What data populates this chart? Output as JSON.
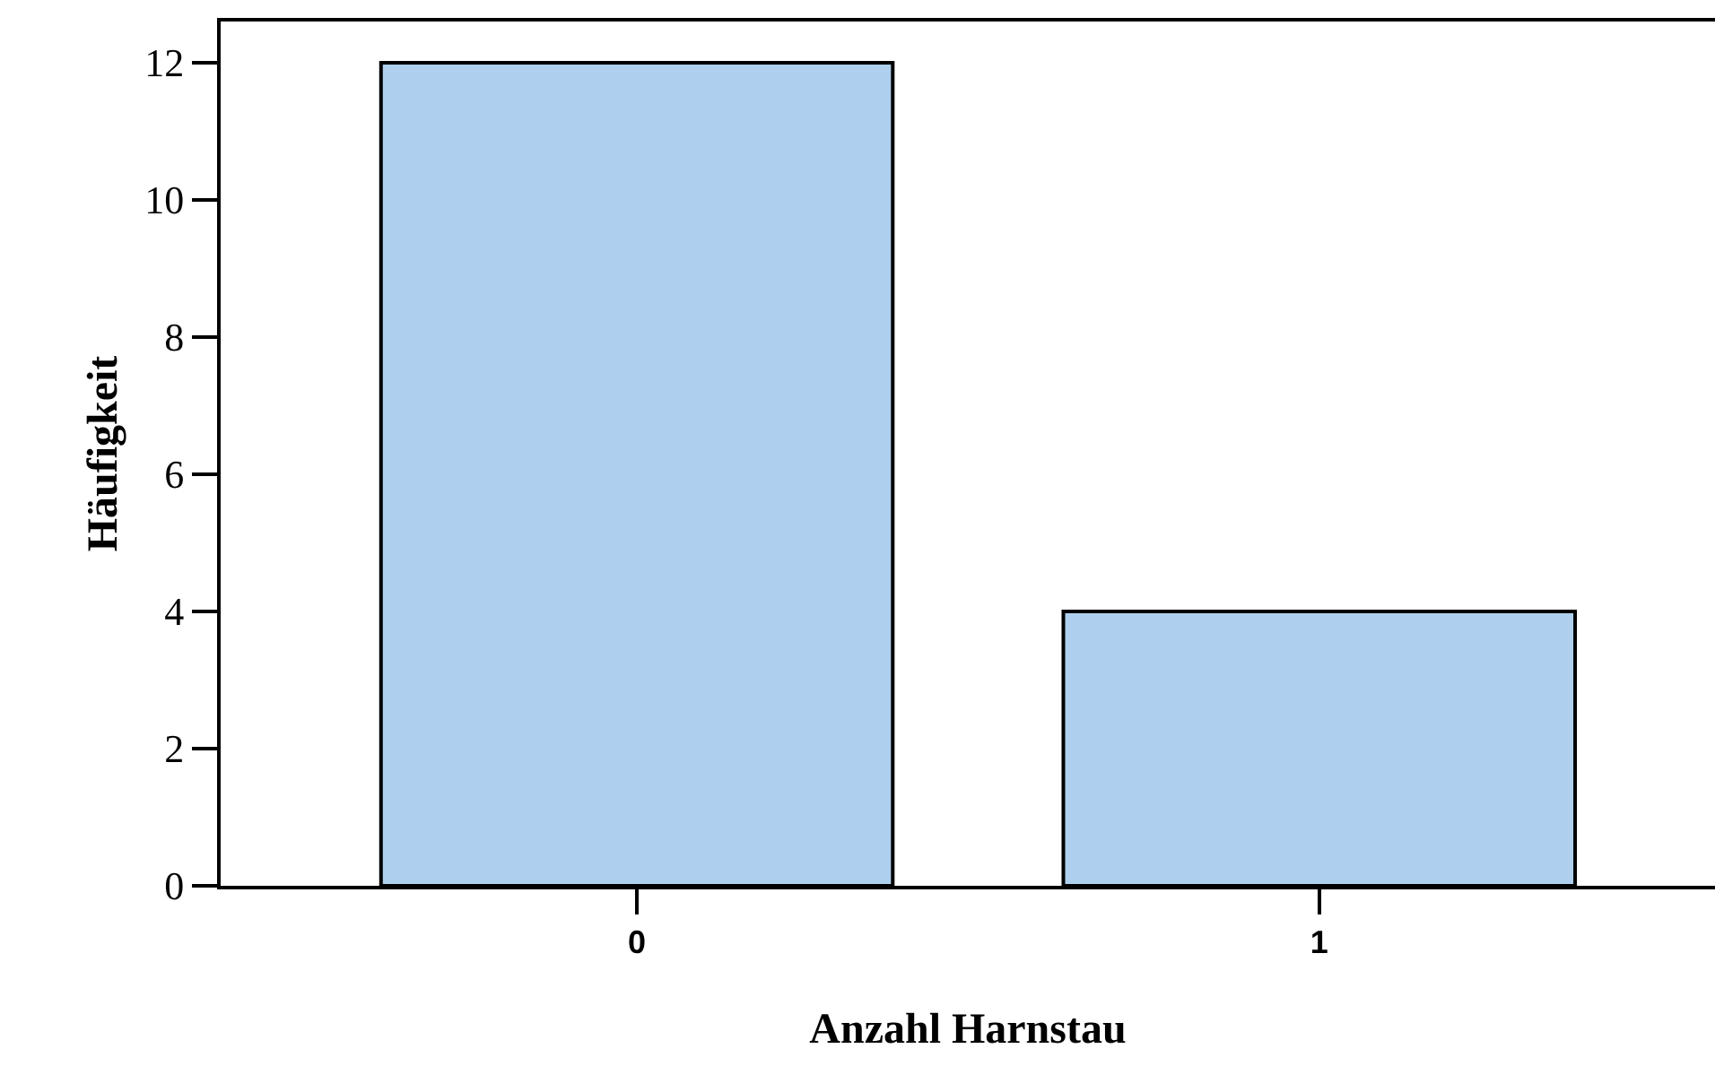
{
  "chart_data": {
    "type": "bar",
    "xlabel": "Anzahl Harnstau",
    "ylabel": "Häufigkeit",
    "categories": [
      "0",
      "1"
    ],
    "values": [
      12,
      4
    ],
    "color": "#aed0ee",
    "ylim": [
      0,
      12.6
    ],
    "yticks": [
      0,
      2,
      4,
      6,
      8,
      10,
      12
    ]
  }
}
